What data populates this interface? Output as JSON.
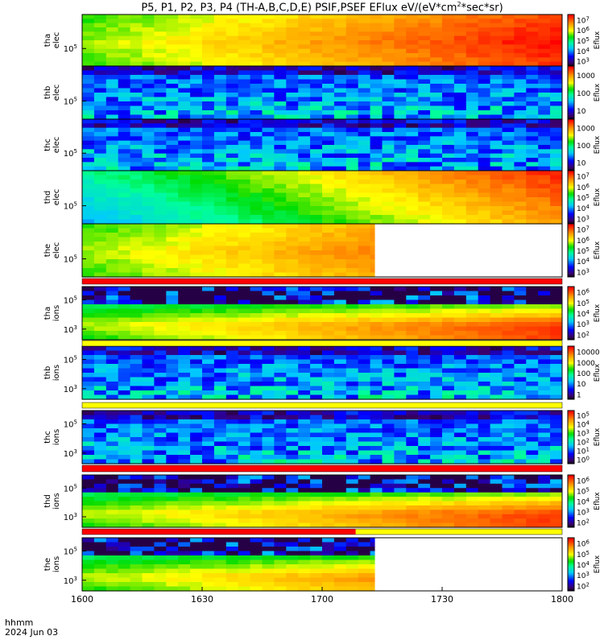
{
  "title": {
    "main": "P5, P1, P2, P3, P4 (TH-A,B,C,D,E) PSIF,PSEF EFlux eV/(eV*cm",
    "sup": "2",
    "tail": "*sec*sr)"
  },
  "time_axis": {
    "label_line1": "hhmm",
    "label_line2": "2024 Jun 03",
    "ticks": [
      "1600",
      "1630",
      "1700",
      "1730",
      "1800"
    ]
  },
  "colorbar_label": "Eflux",
  "chart_data": [
    {
      "type": "heatmap",
      "panel": "tha-elec",
      "ylabel": [
        "tha",
        "elec"
      ],
      "ytick": "10^5",
      "yexp": "5",
      "cbar": [
        "10^3",
        "10^4",
        "10^5",
        "10^6",
        "10^7"
      ],
      "profile": "elec_strong",
      "coverage": 1.0
    },
    {
      "type": "heatmap",
      "panel": "thb-elec",
      "ylabel": [
        "thb",
        "elec"
      ],
      "ytick": "10^5",
      "yexp": "5",
      "cbar": [
        "10",
        "100",
        "1000"
      ],
      "profile": "noisy_low",
      "coverage": 1.0
    },
    {
      "type": "heatmap",
      "panel": "thc-elec",
      "ylabel": [
        "thc",
        "elec"
      ],
      "ytick": "10^5",
      "yexp": "5",
      "cbar": [
        "10",
        "100",
        "1000"
      ],
      "profile": "noisy_low",
      "coverage": 1.0
    },
    {
      "type": "heatmap",
      "panel": "thd-elec",
      "ylabel": [
        "thd",
        "elec"
      ],
      "ytick": "10^5",
      "yexp": "5",
      "cbar": [
        "10^3",
        "10^4",
        "10^5",
        "10^6",
        "10^7"
      ],
      "profile": "elec_med",
      "coverage": 1.0
    },
    {
      "type": "heatmap",
      "panel": "the-elec",
      "ylabel": [
        "the",
        "elec"
      ],
      "ytick": "10^5",
      "yexp": "5",
      "cbar": [
        "10^3",
        "10^4",
        "10^5",
        "10^6",
        "10^7"
      ],
      "profile": "elec_strong",
      "coverage": 0.61
    },
    {
      "type": "heatmap",
      "panel": "tha-ions",
      "ylabel": [
        "tha",
        "ions"
      ],
      "ytick": [
        "10^5",
        "10^3"
      ],
      "yexp": [
        "5",
        "3"
      ],
      "cbar": [
        "10^2",
        "10^3",
        "10^4",
        "10^5",
        "10^6"
      ],
      "profile": "ions_spiky",
      "coverage": 1.0
    },
    {
      "type": "heatmap",
      "panel": "thb-ions",
      "ylabel": [
        "thb",
        "ions"
      ],
      "ytick": [
        "10^5",
        "10^3"
      ],
      "yexp": [
        "5",
        "3"
      ],
      "cbar": [
        "1",
        "10",
        "100",
        "1000",
        "10000"
      ],
      "profile": "noisy_low",
      "coverage": 1.0
    },
    {
      "type": "heatmap",
      "panel": "thc-ions",
      "ylabel": [
        "thc",
        "ions"
      ],
      "ytick": [
        "10^5",
        "10^3"
      ],
      "yexp": [
        "5",
        "3"
      ],
      "cbar": [
        "10^0",
        "10^1",
        "10^2",
        "10^3",
        "10^4",
        "10^5"
      ],
      "profile": "noisy_low",
      "coverage": 1.0
    },
    {
      "type": "heatmap",
      "panel": "thd-ions",
      "ylabel": [
        "thd",
        "ions"
      ],
      "ytick": [
        "10^5",
        "10^3"
      ],
      "yexp": [
        "5",
        "3"
      ],
      "cbar": [
        "10^2",
        "10^3",
        "10^4",
        "10^5",
        "10^6"
      ],
      "profile": "ions_spiky",
      "coverage": 1.0
    },
    {
      "type": "heatmap",
      "panel": "the-ions",
      "ylabel": [
        "the",
        "ions"
      ],
      "ytick": [
        "10^5",
        "10^3"
      ],
      "yexp": [
        "5",
        "3"
      ],
      "cbar": [
        "10^2",
        "10^3",
        "10^4",
        "10^5",
        "10^6"
      ],
      "profile": "ions_spiky",
      "coverage": 0.61
    }
  ],
  "colors": {
    "status_red": "#ff0000",
    "status_yellow": "#ffff00",
    "status_blue": "#0000ff"
  }
}
